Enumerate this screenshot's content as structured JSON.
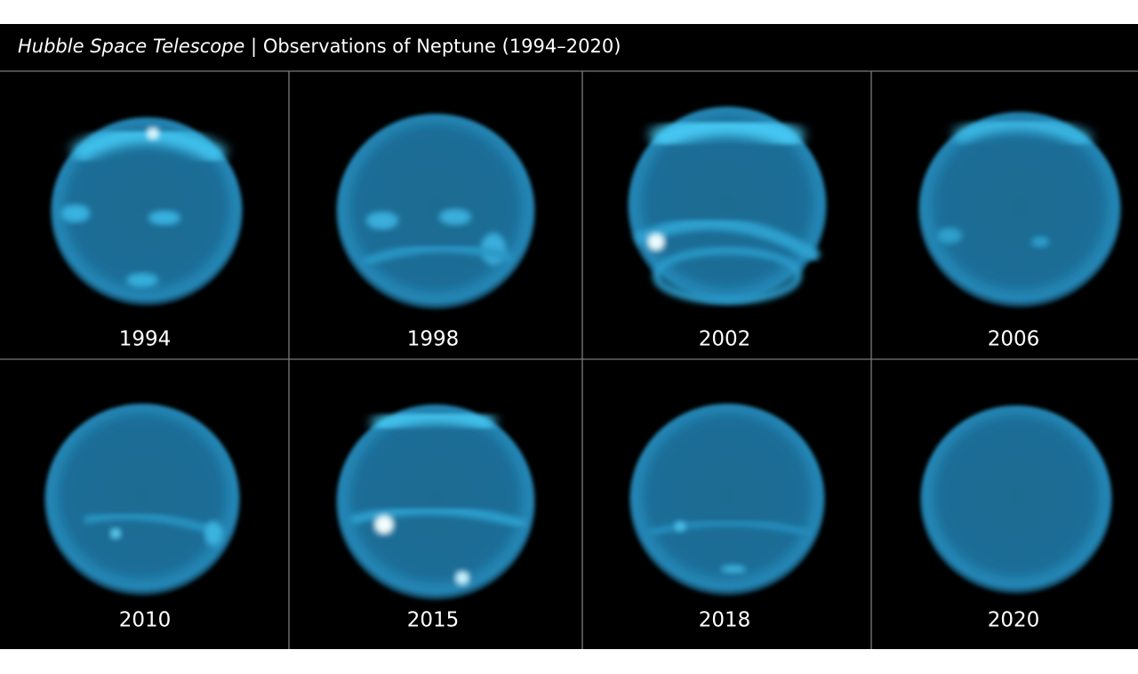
{
  "header": {
    "telescope": "Hubble Space Telescope",
    "separator": "|",
    "title": "Observations of Neptune (1994–2020)"
  },
  "panels": [
    {
      "label": "1994"
    },
    {
      "label": "1998"
    },
    {
      "label": "2002"
    },
    {
      "label": "2006"
    },
    {
      "label": "2010"
    },
    {
      "label": "2015"
    },
    {
      "label": "2018"
    },
    {
      "label": "2020"
    }
  ]
}
